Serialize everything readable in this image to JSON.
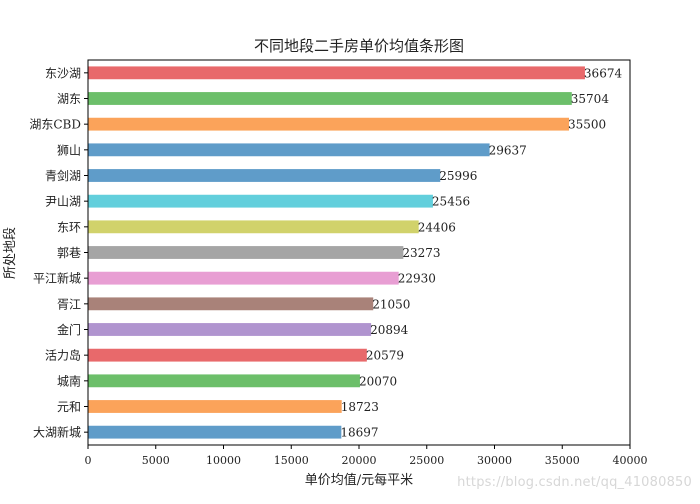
{
  "chart_data": {
    "type": "bar",
    "orientation": "horizontal",
    "title": "不同地段二手房单价均值条形图",
    "xlabel": "单价均值/元每平米",
    "ylabel": "所处地段",
    "xlim": [
      0,
      40000
    ],
    "xticks": [
      0,
      5000,
      10000,
      15000,
      20000,
      25000,
      30000,
      35000,
      40000
    ],
    "grid": false,
    "categories": [
      "东沙湖",
      "湖东",
      "湖东CBD",
      "狮山",
      "青剑湖",
      "尹山湖",
      "东环",
      "郭巷",
      "平江新城",
      "胥江",
      "金门",
      "活力岛",
      "城南",
      "元和",
      "大湖新城"
    ],
    "values": [
      36674,
      35704,
      35500,
      29637,
      25996,
      25456,
      24406,
      23273,
      22930,
      21050,
      20894,
      20579,
      20070,
      18723,
      18697
    ],
    "bar_colors": [
      "#e8696b",
      "#6cbf6a",
      "#fba35a",
      "#5f9cc9",
      "#5f9cc9",
      "#62cfdc",
      "#d1d26b",
      "#a5a5a5",
      "#e89ed3",
      "#a98279",
      "#b094cf",
      "#e8696b",
      "#6cbf6a",
      "#fba35a",
      "#5f9cc9"
    ]
  },
  "watermark": "https://blog.csdn.net/qq_41080850"
}
